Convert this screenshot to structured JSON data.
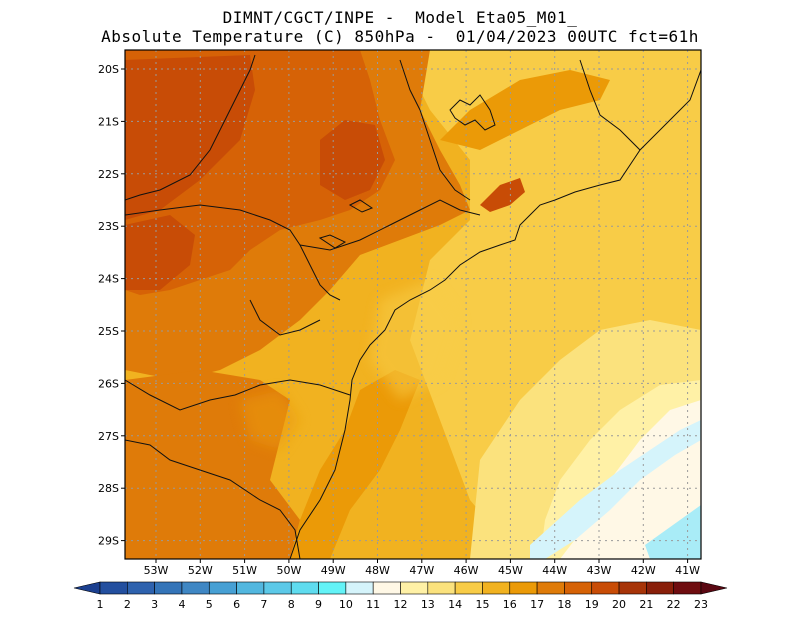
{
  "header": {
    "line1": "DIMNT/CGCT/INPE -  Model Eta05_M01_",
    "line2": "Absolute Temperature (C) 850hPa -  01/04/2023 00UTC fct=61h"
  },
  "map": {
    "lat_labels": [
      "20S",
      "21S",
      "22S",
      "23S",
      "24S",
      "25S",
      "26S",
      "27S",
      "28S",
      "29S"
    ],
    "lon_labels": [
      "53W",
      "52W",
      "51W",
      "50W",
      "49W",
      "48W",
      "47W",
      "46W",
      "45W",
      "44W",
      "43W",
      "42W",
      "41W"
    ]
  },
  "colorbar": {
    "labels": [
      "1",
      "2",
      "3",
      "4",
      "5",
      "6",
      "7",
      "8",
      "9",
      "10",
      "11",
      "12",
      "13",
      "14",
      "15",
      "16",
      "17",
      "18",
      "19",
      "20",
      "21",
      "22",
      "23"
    ],
    "colors": [
      "#1b3f8f",
      "#234f9f",
      "#2e62ae",
      "#3474b8",
      "#3f87c4",
      "#47a0d4",
      "#52b7df",
      "#5cc9e8",
      "#5fdcef",
      "#63f3f7",
      "#d5f4fb",
      "#fff8e6",
      "#fff1a6",
      "#fbe27d",
      "#f8cc47",
      "#f1b220",
      "#eb9a07",
      "#df7b09",
      "#d66206",
      "#c84c06",
      "#a73408",
      "#891f0a",
      "#6f0d10",
      "#5a0812"
    ]
  }
}
